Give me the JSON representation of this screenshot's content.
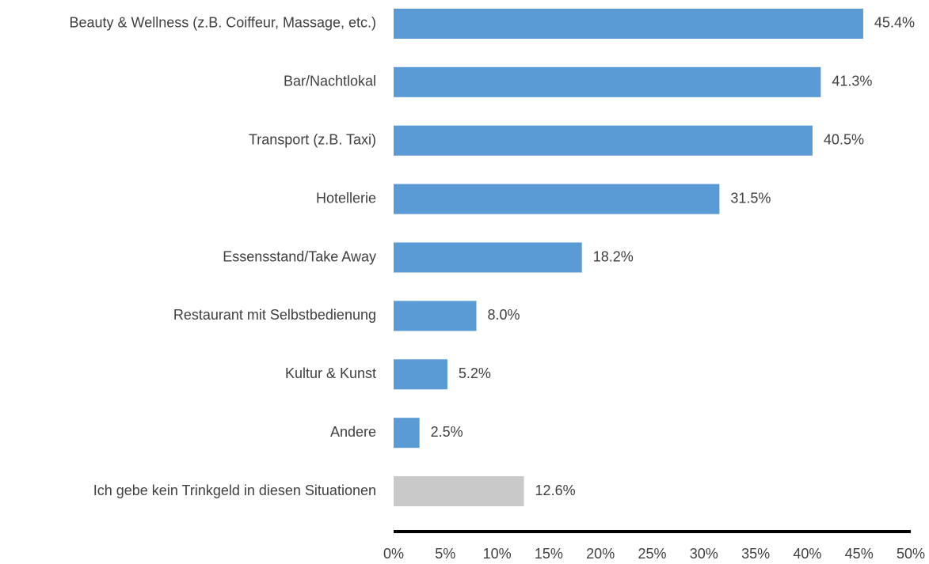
{
  "chart_data": {
    "type": "bar",
    "orientation": "horizontal",
    "categories": [
      "Beauty & Wellness (z.B. Coiffeur, Massage, etc.)",
      "Bar/Nachtlokal",
      "Transport (z.B. Taxi)",
      "Hotellerie",
      "Essensstand/Take Away",
      "Restaurant mit Selbstbedienung",
      "Kultur & Kunst",
      "Andere",
      "Ich gebe kein Trinkgeld in diesen Situationen"
    ],
    "values": [
      45.4,
      41.3,
      40.5,
      31.5,
      18.2,
      8.0,
      5.2,
      2.5,
      12.6
    ],
    "value_labels": [
      "45.4%",
      "41.3%",
      "40.5%",
      "31.5%",
      "18.2%",
      "8.0%",
      "5.2%",
      "2.5%",
      "12.6%"
    ],
    "colors": [
      "#5b9bd5",
      "#5b9bd5",
      "#5b9bd5",
      "#5b9bd5",
      "#5b9bd5",
      "#5b9bd5",
      "#5b9bd5",
      "#5b9bd5",
      "#c9c9c9"
    ],
    "xlim": [
      0,
      50
    ],
    "xticks": [
      {
        "value": 0,
        "label": "0%"
      },
      {
        "value": 5,
        "label": "5%"
      },
      {
        "value": 10,
        "label": "10%"
      },
      {
        "value": 15,
        "label": "15%"
      },
      {
        "value": 20,
        "label": "20%"
      },
      {
        "value": 25,
        "label": "25%"
      },
      {
        "value": 30,
        "label": "30%"
      },
      {
        "value": 35,
        "label": "35%"
      },
      {
        "value": 40,
        "label": "40%"
      },
      {
        "value": 45,
        "label": "45%"
      },
      {
        "value": 50,
        "label": "50%"
      }
    ],
    "grid": false
  }
}
